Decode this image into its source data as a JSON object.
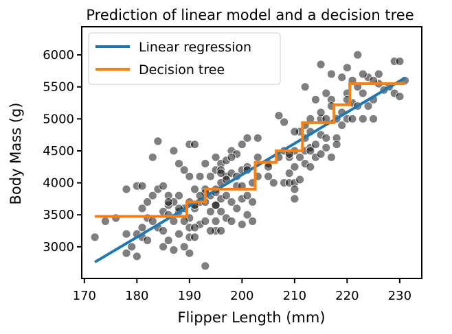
{
  "chart_data": {
    "type": "scatter",
    "title": "Prediction of linear model and a decision tree",
    "xlabel": "Flipper Length (mm)",
    "ylabel": "Body Mass (g)",
    "xlim": [
      169.5,
      234.2
    ],
    "ylim": [
      2505,
      6440
    ],
    "xticks": [
      170,
      180,
      190,
      200,
      210,
      220,
      230
    ],
    "yticks": [
      3000,
      3500,
      4000,
      4500,
      5000,
      5500,
      6000
    ],
    "legend": {
      "placement": "top-left",
      "entries": [
        {
          "label": "Linear regression",
          "color": "#1f77b4"
        },
        {
          "label": "Decision tree",
          "color": "#ff7f0e"
        }
      ]
    },
    "grid": false,
    "scatter_color": "#000000",
    "scatter_opacity": 0.5,
    "series": [
      {
        "type": "line",
        "color": "#1f77b4",
        "x": [
          172,
          231
        ],
        "y": [
          2760,
          5640
        ]
      },
      {
        "type": "step",
        "color": "#ff7f0e",
        "x": [
          172,
          189.5,
          189.5,
          193,
          193,
          202.5,
          202.5,
          206.5,
          206.5,
          211.5,
          211.5,
          217.5,
          217.5,
          220.5,
          220.5,
          231
        ],
        "y": [
          3475,
          3475,
          3700,
          3700,
          3900,
          3900,
          4320,
          4320,
          4500,
          4500,
          4940,
          4940,
          5220,
          5220,
          5550,
          5550
        ]
      },
      {
        "type": "scatter",
        "x": [
          172,
          174,
          176,
          178,
          178,
          179,
          180,
          180,
          180,
          181,
          181,
          181,
          182,
          182,
          182,
          183,
          183,
          184,
          184,
          184,
          185,
          185,
          185,
          185,
          186,
          186,
          186,
          187,
          187,
          187,
          187,
          188,
          188,
          188,
          188,
          189,
          189,
          189,
          190,
          190,
          190,
          190,
          190,
          190,
          190,
          191,
          191,
          191,
          191,
          192,
          192,
          192,
          193,
          193,
          193,
          193,
          193,
          194,
          194,
          194,
          195,
          195,
          195,
          195,
          195,
          195,
          196,
          196,
          196,
          196,
          196,
          197,
          197,
          197,
          197,
          198,
          198,
          198,
          198,
          199,
          199,
          199,
          200,
          200,
          200,
          200,
          201,
          201,
          201,
          201,
          202,
          202,
          202,
          203,
          203,
          203,
          205,
          205,
          206,
          207,
          207,
          208,
          208,
          208,
          209,
          209,
          209,
          210,
          210,
          210,
          210,
          210,
          211,
          211,
          211,
          212,
          212,
          212,
          212,
          213,
          213,
          213,
          213,
          214,
          214,
          214,
          215,
          215,
          215,
          215,
          216,
          216,
          216,
          216,
          217,
          217,
          217,
          218,
          218,
          218,
          219,
          219,
          219,
          220,
          220,
          220,
          221,
          221,
          221,
          222,
          222,
          222,
          223,
          223,
          224,
          224,
          225,
          225,
          226,
          226,
          228,
          229,
          229,
          230,
          230,
          231,
          178,
          181,
          183,
          186,
          189,
          191,
          193,
          195,
          197,
          199,
          201,
          195,
          198,
          186,
          191,
          194,
          196,
          210,
          212,
          215,
          217,
          220,
          223,
          225,
          227,
          188,
          192,
          196,
          200,
          205,
          209,
          213
        ],
        "y": [
          3150,
          3400,
          3450,
          3900,
          2900,
          3000,
          3950,
          3200,
          2850,
          3600,
          3300,
          3150,
          3700,
          3450,
          3100,
          4400,
          3400,
          4650,
          3900,
          3300,
          3950,
          3550,
          3250,
          3000,
          3800,
          3500,
          3100,
          4500,
          3400,
          2950,
          3700,
          4300,
          3800,
          3200,
          3550,
          4200,
          3600,
          3000,
          4600,
          4100,
          3700,
          3450,
          3150,
          2900,
          3300,
          4600,
          3900,
          3600,
          3150,
          4100,
          3700,
          3350,
          4300,
          3900,
          3700,
          3400,
          2700,
          4100,
          3800,
          3550,
          4400,
          4200,
          3900,
          3650,
          3400,
          3250,
          4300,
          4000,
          3750,
          3550,
          3250,
          4350,
          4100,
          3800,
          3450,
          4500,
          4150,
          3700,
          3400,
          4450,
          4100,
          3600,
          4600,
          4200,
          3750,
          3350,
          4700,
          4250,
          3800,
          3500,
          4000,
          3700,
          3400,
          4700,
          4400,
          4100,
          4300,
          4100,
          4000,
          5050,
          4400,
          4950,
          4500,
          4000,
          4400,
          4150,
          4000,
          4500,
          4250,
          4000,
          3900,
          3750,
          4800,
          4400,
          4050,
          5500,
          4700,
          4500,
          4300,
          5000,
          4800,
          4550,
          4250,
          5300,
          4600,
          4400,
          5850,
          5000,
          4750,
          4450,
          5400,
          5000,
          4700,
          4550,
          5700,
          5300,
          4400,
          5000,
          4700,
          4600,
          5650,
          5100,
          4900,
          5800,
          5400,
          5000,
          5600,
          5250,
          5000,
          6000,
          5500,
          5200,
          5400,
          5000,
          5650,
          5200,
          5300,
          5000,
          5700,
          5550,
          5500,
          5400,
          5900,
          5900,
          5350,
          5600,
          3200,
          3950,
          3800,
          3650,
          3400,
          3650,
          3850,
          3650,
          4050,
          3950,
          4200,
          3850,
          4400,
          3700,
          3300,
          3250,
          4200,
          4800,
          4900,
          5100,
          5200,
          5300,
          5700,
          5600,
          5450,
          3600,
          3800,
          4150,
          3950,
          4250,
          4450,
          4500
        ]
      }
    ]
  }
}
